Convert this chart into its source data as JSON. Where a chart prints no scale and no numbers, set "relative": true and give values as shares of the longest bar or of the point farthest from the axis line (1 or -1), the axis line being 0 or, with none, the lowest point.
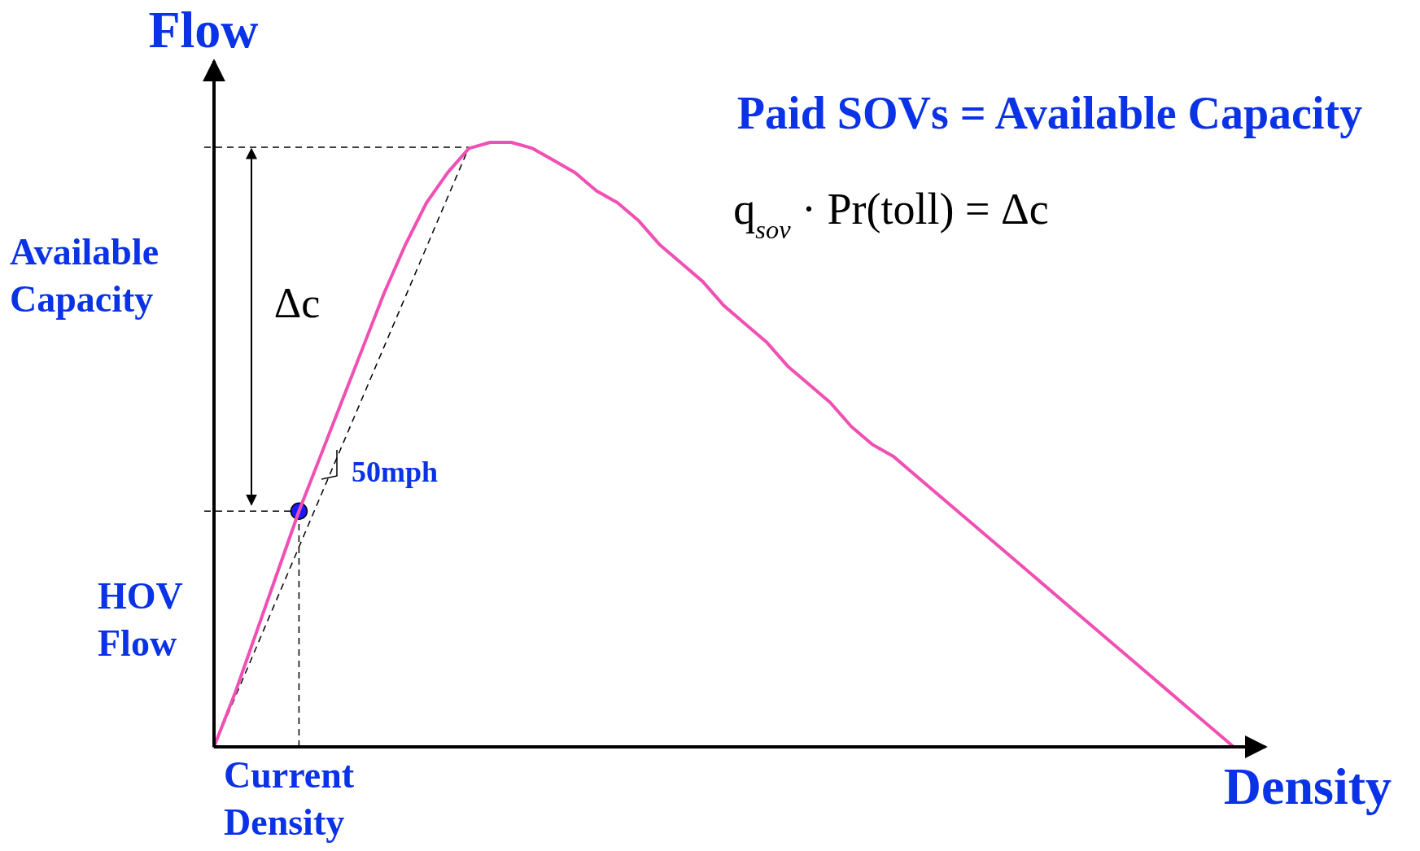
{
  "chart_data": {
    "type": "line",
    "relative": true,
    "ylabel": "Flow",
    "xlabel": "Density",
    "title": "Paid SOVs = Available Capacity",
    "categories": [
      null,
      null,
      null,
      null,
      null,
      null,
      null,
      null,
      null,
      null,
      null,
      null,
      null,
      null,
      null,
      null,
      null,
      null,
      null,
      null,
      null,
      null,
      null,
      null,
      null,
      null,
      null,
      null,
      null,
      null,
      null,
      null,
      null,
      null,
      null,
      null,
      null,
      null,
      null,
      null,
      null,
      null,
      null,
      null,
      null,
      null,
      null,
      null,
      null
    ],
    "series": [
      {
        "color": "#f050b4",
        "values": [
          0,
          0.09,
          0.19,
          0.29,
          0.39,
          0.48,
          0.57,
          0.66,
          0.75,
          0.83,
          0.9,
          0.95,
          0.99,
          1,
          1,
          0.99,
          0.97,
          0.95,
          0.92,
          0.9,
          0.87,
          0.83,
          0.8,
          0.77,
          0.73,
          0.7,
          0.67,
          0.63,
          0.6,
          0.57,
          0.53,
          0.5,
          0.48,
          0.45,
          0.42,
          0.39,
          0.36,
          0.33,
          0.3,
          0.27,
          0.24,
          0.21,
          0.18,
          0.15,
          0.12,
          0.09,
          0.06,
          0.03,
          0
        ]
      }
    ],
    "annotations": [
      "q$_{sov}$ · Pr(toll) = Δc",
      "Δc",
      "50mph",
      "Available Capacity",
      "HOV Flow",
      "Current Density"
    ]
  }
}
